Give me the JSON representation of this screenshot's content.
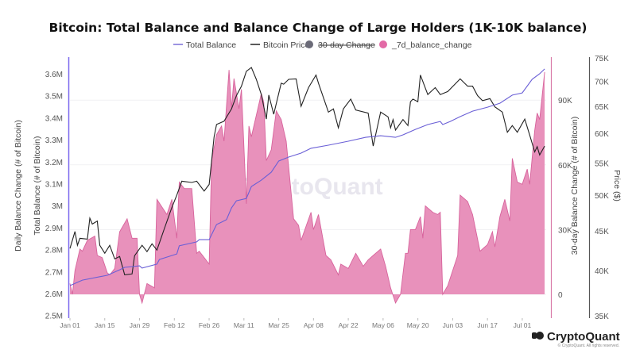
{
  "chart_data": {
    "type": "line",
    "title": "Bitcoin: Total Balance and Balance Change of Large Holders (1K-10K balance)",
    "legend": [
      {
        "label": "Total Balance",
        "color": "#7a6fd8",
        "type": "line"
      },
      {
        "label": "Bitcoin Price",
        "color": "#222222",
        "type": "line"
      },
      {
        "label": "30-day Change",
        "color": "#6b6b78",
        "type": "dot",
        "hidden": true
      },
      {
        "label": "_7d_balance_change",
        "color": "#e36aa6",
        "type": "dot"
      }
    ],
    "legend_position": "top-center",
    "x_unit": "days since Jan 01",
    "x_ticks": [
      "Jan 01",
      "Jan 15",
      "Jan 29",
      "Feb 12",
      "Feb 26",
      "Mar 11",
      "Mar 25",
      "Apr 08",
      "Apr 22",
      "May 06",
      "May 20",
      "Jun 03",
      "Jun 17",
      "Jul 01"
    ],
    "x_tick_days": [
      0,
      14,
      28,
      42,
      56,
      70,
      84,
      98,
      112,
      126,
      140,
      154,
      168,
      182
    ],
    "xlim": [
      0,
      192
    ],
    "axes": {
      "left": {
        "label_outer": "Daily Balance Change (# of Bitcoin)",
        "label": "Total Balance (# of Bitcoin)",
        "ticks": [
          "3.6M",
          "3.5M",
          "3.4M",
          "3.3M",
          "3.2M",
          "3.1M",
          "3M",
          "2.9M",
          "2.8M",
          "2.7M",
          "2.6M",
          "2.5M"
        ],
        "tick_values": [
          3.6,
          3.5,
          3.4,
          3.3,
          3.2,
          3.1,
          3.0,
          2.9,
          2.8,
          2.7,
          2.6,
          2.5
        ],
        "ylim": [
          2.5,
          3.6
        ],
        "unit": "M BTC"
      },
      "right1": {
        "label": "30-day Balance Change (# of Bitcoin)",
        "ticks": [
          "90K",
          "60K",
          "30K",
          "0"
        ],
        "tick_values": [
          90,
          60,
          30,
          0
        ],
        "unit": "K BTC"
      },
      "right2": {
        "label": "Price ($)",
        "ticks": [
          "75K",
          "70K",
          "65K",
          "60K",
          "55K",
          "50K",
          "45K",
          "40K",
          "35K"
        ],
        "tick_values": [
          75,
          70,
          65,
          60,
          55,
          50,
          45,
          40,
          35
        ],
        "scale": "log",
        "unit": "K USD"
      }
    },
    "series": [
      {
        "name": "_7d_balance_change",
        "type": "area",
        "axis": "right1",
        "points": [
          [
            0,
            5
          ],
          [
            1,
            0
          ],
          [
            2,
            11
          ],
          [
            4,
            21
          ],
          [
            5,
            20
          ],
          [
            7,
            25
          ],
          [
            10,
            27
          ],
          [
            11,
            18
          ],
          [
            13,
            17
          ],
          [
            15,
            10
          ],
          [
            16,
            9
          ],
          [
            18,
            12
          ],
          [
            20,
            29
          ],
          [
            23,
            35
          ],
          [
            25,
            26
          ],
          [
            27,
            26
          ],
          [
            28,
            0
          ],
          [
            29,
            -4
          ],
          [
            31,
            5
          ],
          [
            34,
            3
          ],
          [
            35,
            44
          ],
          [
            39,
            37
          ],
          [
            41,
            44
          ],
          [
            43,
            26
          ],
          [
            44,
            52
          ],
          [
            46,
            49
          ],
          [
            49,
            49
          ],
          [
            51,
            19
          ],
          [
            52,
            20
          ],
          [
            56,
            14
          ],
          [
            57,
            62
          ],
          [
            59,
            74
          ],
          [
            61,
            78
          ],
          [
            62,
            71
          ],
          [
            64,
            104
          ],
          [
            65,
            86
          ],
          [
            66,
            100
          ],
          [
            68,
            86
          ],
          [
            69,
            95
          ],
          [
            71,
            42
          ],
          [
            72,
            78
          ],
          [
            73,
            73
          ],
          [
            77,
            93
          ],
          [
            78,
            89
          ],
          [
            79,
            62
          ],
          [
            81,
            67
          ],
          [
            83,
            85
          ],
          [
            85,
            81
          ],
          [
            87,
            71
          ],
          [
            90,
            35
          ],
          [
            92,
            32
          ],
          [
            93,
            25
          ],
          [
            97,
            38
          ],
          [
            98,
            30
          ],
          [
            100,
            37
          ],
          [
            103,
            18
          ],
          [
            105,
            16
          ],
          [
            108,
            9
          ],
          [
            109,
            14
          ],
          [
            112,
            12
          ],
          [
            115,
            19
          ],
          [
            118,
            13
          ],
          [
            120,
            16
          ],
          [
            122,
            18
          ],
          [
            125,
            21
          ],
          [
            127,
            13
          ],
          [
            129,
            3
          ],
          [
            131,
            -4
          ],
          [
            133,
            0
          ],
          [
            135,
            19
          ],
          [
            136,
            19
          ],
          [
            137,
            30
          ],
          [
            139,
            30
          ],
          [
            141,
            36
          ],
          [
            142,
            26
          ],
          [
            143,
            41
          ],
          [
            146,
            38
          ],
          [
            148,
            37
          ],
          [
            149,
            38
          ],
          [
            150,
            0
          ],
          [
            152,
            4
          ],
          [
            154,
            11
          ],
          [
            156,
            18
          ],
          [
            157,
            46
          ],
          [
            160,
            43
          ],
          [
            162,
            37
          ],
          [
            165,
            20
          ],
          [
            168,
            23
          ],
          [
            170,
            29
          ],
          [
            171,
            22
          ],
          [
            173,
            36
          ],
          [
            175,
            44
          ],
          [
            177,
            34
          ],
          [
            178,
            63
          ],
          [
            180,
            52
          ],
          [
            182,
            51
          ],
          [
            184,
            58
          ],
          [
            185,
            51
          ],
          [
            187,
            76
          ],
          [
            188,
            84
          ],
          [
            189,
            81
          ],
          [
            191,
            103
          ]
        ]
      },
      {
        "name": "Bitcoin Price",
        "type": "line",
        "axis": "right2",
        "points": [
          [
            0,
            42.7
          ],
          [
            2,
            44.9
          ],
          [
            3,
            43.1
          ],
          [
            4,
            44.0
          ],
          [
            7,
            43.9
          ],
          [
            8,
            46.7
          ],
          [
            9,
            45.9
          ],
          [
            11,
            46.3
          ],
          [
            12,
            43.1
          ],
          [
            14,
            42.1
          ],
          [
            16,
            43.1
          ],
          [
            18,
            41.4
          ],
          [
            20,
            41.7
          ],
          [
            22,
            39.5
          ],
          [
            25,
            39.6
          ],
          [
            26,
            41.8
          ],
          [
            29,
            43.1
          ],
          [
            31,
            42.3
          ],
          [
            33,
            43.3
          ],
          [
            35,
            42.5
          ],
          [
            38,
            45.3
          ],
          [
            41,
            48.2
          ],
          [
            43,
            50.0
          ],
          [
            45,
            52.1
          ],
          [
            49,
            51.9
          ],
          [
            51,
            52.1
          ],
          [
            54,
            50.6
          ],
          [
            56,
            51.6
          ],
          [
            58,
            59.4
          ],
          [
            59,
            61.6
          ],
          [
            62,
            62.2
          ],
          [
            65,
            64.5
          ],
          [
            67,
            67.1
          ],
          [
            69,
            69.0
          ],
          [
            71,
            72.1
          ],
          [
            73,
            72.9
          ],
          [
            75,
            70.4
          ],
          [
            77,
            67.3
          ],
          [
            79,
            62.6
          ],
          [
            80,
            67.2
          ],
          [
            82,
            63.5
          ],
          [
            85,
            69.6
          ],
          [
            86,
            69.4
          ],
          [
            88,
            70.4
          ],
          [
            91,
            70.5
          ],
          [
            93,
            65.0
          ],
          [
            96,
            68.7
          ],
          [
            99,
            71.3
          ],
          [
            100,
            69.6
          ],
          [
            104,
            63.9
          ],
          [
            106,
            64.5
          ],
          [
            108,
            61.0
          ],
          [
            110,
            64.5
          ],
          [
            113,
            66.4
          ],
          [
            115,
            64.3
          ],
          [
            120,
            63.7
          ],
          [
            122,
            57.8
          ],
          [
            125,
            63.9
          ],
          [
            128,
            63.0
          ],
          [
            129,
            61.0
          ],
          [
            130,
            62.5
          ],
          [
            131,
            60.6
          ],
          [
            134,
            62.5
          ],
          [
            136,
            61.4
          ],
          [
            137,
            65.9
          ],
          [
            138,
            66.4
          ],
          [
            140,
            65.9
          ],
          [
            141,
            71.3
          ],
          [
            144,
            67.3
          ],
          [
            147,
            68.7
          ],
          [
            149,
            67.3
          ],
          [
            152,
            67.9
          ],
          [
            157,
            70.5
          ],
          [
            160,
            69.0
          ],
          [
            162,
            69.0
          ],
          [
            164,
            67.1
          ],
          [
            166,
            66.1
          ],
          [
            169,
            66.5
          ],
          [
            171,
            64.9
          ],
          [
            174,
            63.9
          ],
          [
            176,
            60.2
          ],
          [
            178,
            61.4
          ],
          [
            180,
            60.2
          ],
          [
            183,
            62.6
          ],
          [
            185,
            59.7
          ],
          [
            187,
            56.8
          ],
          [
            188,
            57.7
          ],
          [
            189,
            56.3
          ],
          [
            191,
            57.8
          ]
        ]
      },
      {
        "name": "Total Balance",
        "type": "line",
        "axis": "left",
        "points": [
          [
            0,
            2.636
          ],
          [
            5,
            2.661
          ],
          [
            15,
            2.683
          ],
          [
            20,
            2.708
          ],
          [
            22,
            2.719
          ],
          [
            28,
            2.726
          ],
          [
            29,
            2.716
          ],
          [
            35,
            2.734
          ],
          [
            36,
            2.755
          ],
          [
            43,
            2.78
          ],
          [
            44,
            2.817
          ],
          [
            51,
            2.835
          ],
          [
            52,
            2.845
          ],
          [
            56,
            2.845
          ],
          [
            59,
            2.914
          ],
          [
            61,
            2.925
          ],
          [
            63,
            2.936
          ],
          [
            65,
            2.99
          ],
          [
            67,
            3.022
          ],
          [
            71,
            3.033
          ],
          [
            73,
            3.087
          ],
          [
            77,
            3.116
          ],
          [
            81,
            3.152
          ],
          [
            84,
            3.203
          ],
          [
            88,
            3.221
          ],
          [
            93,
            3.239
          ],
          [
            97,
            3.261
          ],
          [
            104,
            3.275
          ],
          [
            112,
            3.293
          ],
          [
            119,
            3.311
          ],
          [
            125,
            3.318
          ],
          [
            131,
            3.311
          ],
          [
            134,
            3.322
          ],
          [
            139,
            3.347
          ],
          [
            144,
            3.369
          ],
          [
            149,
            3.383
          ],
          [
            150,
            3.369
          ],
          [
            153,
            3.383
          ],
          [
            157,
            3.405
          ],
          [
            162,
            3.43
          ],
          [
            168,
            3.448
          ],
          [
            173,
            3.466
          ],
          [
            178,
            3.503
          ],
          [
            182,
            3.513
          ],
          [
            186,
            3.575
          ],
          [
            189,
            3.6
          ],
          [
            191,
            3.622
          ]
        ]
      }
    ]
  },
  "watermark": "CryptoQuant",
  "footer": {
    "logo": "CryptoQuant",
    "copyright": "© CryptoQuant. All rights reserved."
  }
}
